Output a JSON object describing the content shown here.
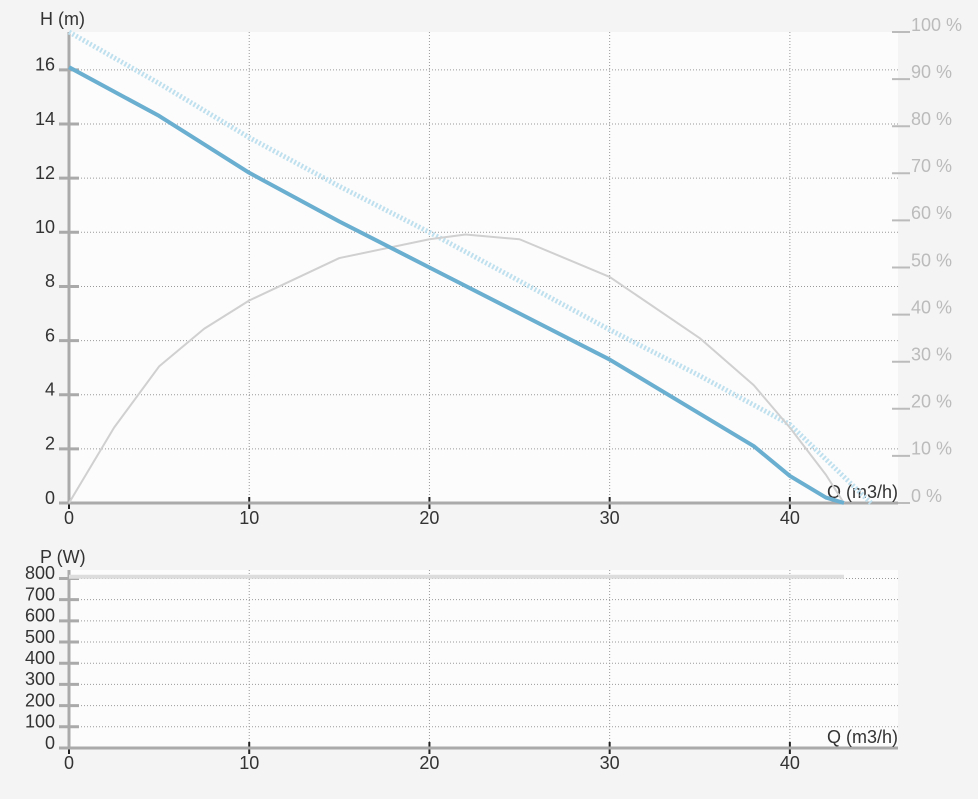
{
  "chart_data": [
    {
      "type": "line",
      "y_label": "H (m)",
      "x_label": "Q (m3/h)",
      "xlim": [
        0,
        46
      ],
      "xticks": [
        0,
        10,
        20,
        30,
        40
      ],
      "ylim": [
        0,
        17.4
      ],
      "yticks": [
        0,
        2,
        4,
        6,
        8,
        10,
        12,
        14,
        16
      ],
      "y2lim": [
        0,
        100
      ],
      "y2ticks": [
        {
          "value": 0,
          "label": "0 %"
        },
        {
          "value": 10,
          "label": "10 %"
        },
        {
          "value": 20,
          "label": "20 %"
        },
        {
          "value": 30,
          "label": "30 %"
        },
        {
          "value": 40,
          "label": "40 %"
        },
        {
          "value": 50,
          "label": "50 %"
        },
        {
          "value": 60,
          "label": "60 %"
        },
        {
          "value": 70,
          "label": "70 %"
        },
        {
          "value": 80,
          "label": "80 %"
        },
        {
          "value": 90,
          "label": "90 %"
        },
        {
          "value": 100,
          "label": "100 %"
        }
      ],
      "grid": true,
      "series": [
        {
          "color": "#bfe0ee",
          "style": "dotted",
          "x": [
            0,
            5,
            10,
            15,
            20,
            25,
            30,
            35,
            40,
            44.5
          ],
          "values": [
            17.4,
            15.5,
            13.5,
            11.7,
            10.0,
            8.2,
            6.4,
            4.7,
            2.9,
            0
          ]
        },
        {
          "color": "#d0d0d0",
          "axis": "y2",
          "style": "solid",
          "x": [
            0,
            2.5,
            5,
            7.5,
            10,
            15,
            20,
            22,
            25,
            30,
            35,
            38,
            40,
            42,
            43
          ],
          "values": [
            0,
            16,
            29,
            37,
            43,
            52,
            56,
            57,
            56,
            48,
            35,
            25,
            16,
            6,
            0
          ]
        },
        {
          "color": "#6aaed0",
          "style": "solid",
          "x": [
            0,
            5,
            10,
            15,
            20,
            25,
            30,
            35,
            38,
            40,
            42,
            43
          ],
          "values": [
            16.1,
            14.3,
            12.2,
            10.4,
            8.7,
            7.0,
            5.3,
            3.3,
            2.1,
            1.0,
            0.2,
            0
          ]
        }
      ]
    },
    {
      "type": "line",
      "y_label": "P (W)",
      "x_label": "Q (m3/h)",
      "xlim": [
        0,
        46
      ],
      "xticks": [
        0,
        10,
        20,
        30,
        40
      ],
      "ylim": [
        0,
        840
      ],
      "yticks": [
        0,
        100,
        200,
        300,
        400,
        500,
        600,
        700,
        800
      ],
      "grid": true,
      "series": [
        {
          "color": "#dddddd",
          "style": "solid",
          "x": [
            0,
            43
          ],
          "values": [
            808,
            808
          ]
        }
      ]
    }
  ]
}
